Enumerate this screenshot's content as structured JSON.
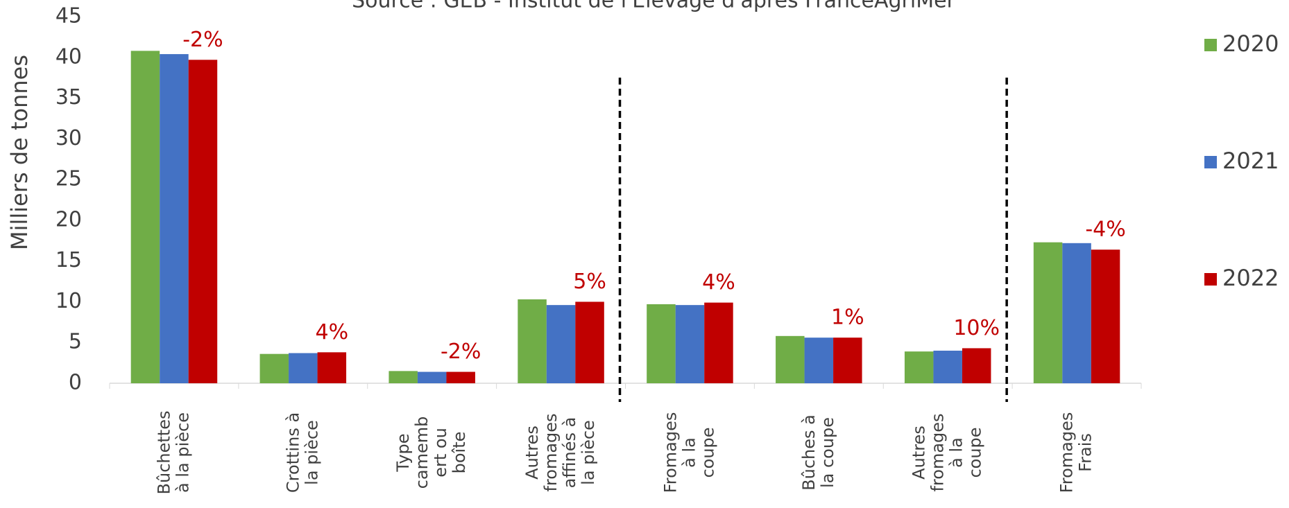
{
  "chart_data": {
    "type": "bar",
    "subtitle": "Source : GEB - Institut de l'Elevage d'après FranceAgriMer",
    "y_label": "Milliers de tonnes",
    "categories": [
      [
        "Bûchettes",
        "à la pièce"
      ],
      [
        "Crottins à",
        "la pièce"
      ],
      [
        "Type",
        "camemb",
        "ert ou",
        "boîte"
      ],
      [
        "Autres",
        "fromages",
        "affinés à",
        "la pièce"
      ],
      [
        "Fromages",
        "à la",
        "coupe"
      ],
      [
        "Bûches à",
        "la coupe"
      ],
      [
        "Autres",
        "fromages",
        "à la",
        "coupe"
      ],
      [
        "Fromages",
        "Frais"
      ]
    ],
    "series": [
      {
        "name": "2020",
        "color": "#70ad47",
        "values": [
          40.8,
          3.6,
          1.5,
          10.3,
          9.7,
          5.8,
          3.9,
          17.3
        ]
      },
      {
        "name": "2021",
        "color": "#4472c4",
        "values": [
          40.4,
          3.7,
          1.4,
          9.6,
          9.6,
          5.6,
          4.0,
          17.2
        ]
      },
      {
        "name": "2022",
        "color": "#c00000",
        "values": [
          39.7,
          3.8,
          1.4,
          10.0,
          9.9,
          5.6,
          4.3,
          16.4
        ]
      }
    ],
    "annotations": [
      "-2%",
      "4%",
      "-2%",
      "5%",
      "4%",
      "1%",
      "10%",
      "-4%"
    ],
    "annotation_color": "#c00000",
    "ylim": [
      0,
      45
    ],
    "yticks": [
      0,
      5,
      10,
      15,
      20,
      25,
      30,
      35,
      40,
      45
    ],
    "grid": false,
    "legend": "right"
  }
}
